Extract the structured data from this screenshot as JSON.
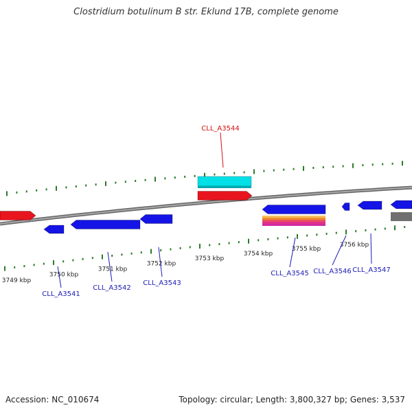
{
  "title": "Clostridium botulinum B str. Eklund 17B, complete genome",
  "footer": {
    "accession": "Accession: NC_010674",
    "stats": "Topology: circular; Length: 3,800,327 bp; Genes: 3,537"
  },
  "colors": {
    "backbone": "#888888",
    "tick": "#2a7a2a",
    "forward_gene": "#e8141e",
    "forward_rna": "#00e0e6",
    "reverse_gene": "#1414e6",
    "pseudo_gene": "#707070",
    "label_forward": "#d01010",
    "label_reverse": "#1a1ab4",
    "orange": "#f08a2c",
    "pink": "#e0308a"
  },
  "scale_labels": [
    "3749 kbp",
    "3750 kbp",
    "3751 kbp",
    "3752 kbp",
    "3753 kbp",
    "3754 kbp",
    "3755 kbp",
    "3756 kbp"
  ],
  "gene_labels": [
    {
      "text": "CLL_A3544",
      "strand": "forward"
    },
    {
      "text": "CLL_A3541",
      "strand": "reverse"
    },
    {
      "text": "CLL_A3542",
      "strand": "reverse"
    },
    {
      "text": "CLL_A3543",
      "strand": "reverse"
    },
    {
      "text": "CLL_A3545",
      "strand": "reverse"
    },
    {
      "text": "CLL_A3546",
      "strand": "reverse"
    },
    {
      "text": "CLL_A3547",
      "strand": "reverse"
    }
  ]
}
